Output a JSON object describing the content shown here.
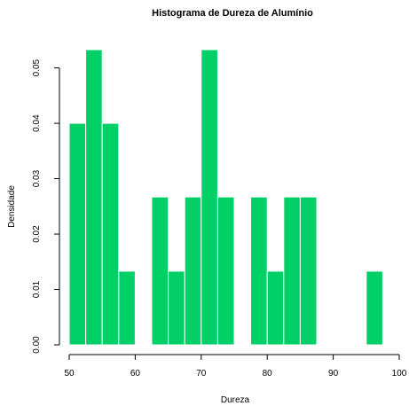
{
  "chart_data": {
    "type": "bar",
    "title": "Histograma de Dureza de Alumínio",
    "xlabel": "Dureza",
    "ylabel": "Densidade",
    "xlim": [
      50,
      100
    ],
    "ylim": [
      0,
      0.0533
    ],
    "bin_width": 2.5,
    "bins": [
      {
        "start": 50.0,
        "end": 52.5,
        "density": 0.04
      },
      {
        "start": 52.5,
        "end": 55.0,
        "density": 0.0533
      },
      {
        "start": 55.0,
        "end": 57.5,
        "density": 0.04
      },
      {
        "start": 57.5,
        "end": 60.0,
        "density": 0.0133
      },
      {
        "start": 62.5,
        "end": 65.0,
        "density": 0.0267
      },
      {
        "start": 65.0,
        "end": 67.5,
        "density": 0.0133
      },
      {
        "start": 67.5,
        "end": 70.0,
        "density": 0.0267
      },
      {
        "start": 70.0,
        "end": 72.5,
        "density": 0.0533
      },
      {
        "start": 72.5,
        "end": 75.0,
        "density": 0.0267
      },
      {
        "start": 77.5,
        "end": 80.0,
        "density": 0.0267
      },
      {
        "start": 80.0,
        "end": 82.5,
        "density": 0.0133
      },
      {
        "start": 82.5,
        "end": 85.0,
        "density": 0.0267
      },
      {
        "start": 85.0,
        "end": 87.5,
        "density": 0.0267
      },
      {
        "start": 95.0,
        "end": 97.5,
        "density": 0.0133
      }
    ],
    "x_ticks": [
      50,
      60,
      70,
      80,
      90,
      100
    ],
    "x_tick_labels": [
      "50",
      "60",
      "70",
      "80",
      "90",
      "100"
    ],
    "y_ticks": [
      0,
      0.01,
      0.02,
      0.03,
      0.04,
      0.05
    ],
    "y_tick_labels": [
      "0.00",
      "0.01",
      "0.02",
      "0.03",
      "0.04",
      "0.05"
    ],
    "bar_color": "#00d066",
    "bar_border_color": "#ffffff",
    "grid": false,
    "legend": "none"
  }
}
